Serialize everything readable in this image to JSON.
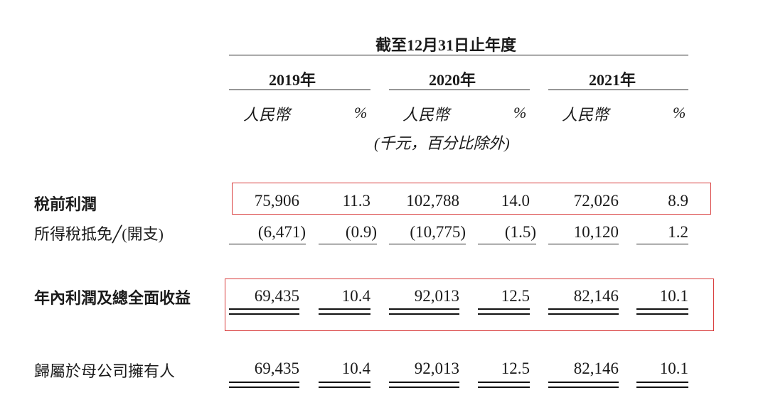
{
  "header": {
    "period": "截至12月31日止年度",
    "years": [
      "2019年",
      "2020年",
      "2021年"
    ],
    "currency": "人民幣",
    "percent": "%",
    "unit_note": "(千元，百分比除外)"
  },
  "rows": [
    {
      "label": "稅前利潤",
      "values": [
        "75,906",
        "11.3",
        "102,788",
        "14.0",
        "72,026",
        "8.9"
      ]
    },
    {
      "label": "所得稅抵免╱(開支)",
      "values": [
        "(6,471)",
        "(0.9)",
        "(10,775)",
        "(1.5)",
        "10,120",
        "1.2"
      ]
    },
    {
      "label": "年內利潤及總全面收益",
      "values": [
        "69,435",
        "10.4",
        "92,013",
        "12.5",
        "82,146",
        "10.1"
      ]
    },
    {
      "label": "歸屬於母公司擁有人",
      "values": [
        "69,435",
        "10.4",
        "92,013",
        "12.5",
        "82,146",
        "10.1"
      ]
    }
  ],
  "colors": {
    "highlight_box": "#d83a3a"
  }
}
